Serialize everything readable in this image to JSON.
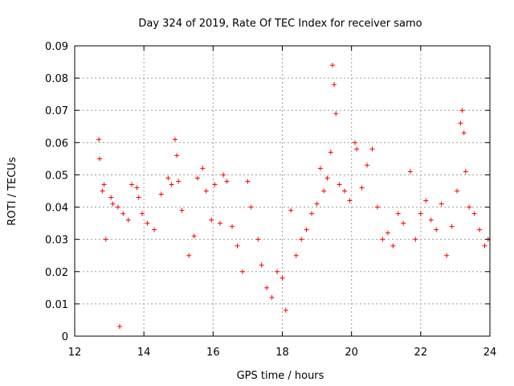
{
  "chart_data": {
    "type": "scatter",
    "title": "Day 324 of 2019, Rate Of TEC Index for receiver samo",
    "xlabel": "GPS time / hours",
    "ylabel": "ROTI / TECUs",
    "xlim": [
      12,
      24
    ],
    "ylim": [
      0,
      0.09
    ],
    "xticks": [
      "12",
      "14",
      "16",
      "18",
      "20",
      "22",
      "24"
    ],
    "yticks": [
      "0",
      "0.01",
      "0.02",
      "0.03",
      "0.04",
      "0.05",
      "0.06",
      "0.07",
      "0.08",
      "0.09"
    ],
    "grid": true,
    "marker": "+",
    "color": "#ff0000",
    "series": [
      {
        "name": "ROTI",
        "x": [
          12.7,
          12.72,
          12.8,
          12.85,
          12.9,
          13.05,
          13.1,
          13.25,
          13.3,
          13.4,
          13.55,
          13.65,
          13.8,
          13.85,
          13.95,
          14.1,
          14.3,
          14.5,
          14.7,
          14.8,
          14.9,
          14.95,
          15.0,
          15.1,
          15.3,
          15.45,
          15.55,
          15.7,
          15.8,
          15.95,
          16.05,
          16.2,
          16.3,
          16.4,
          16.55,
          16.7,
          16.85,
          17.0,
          17.1,
          17.3,
          17.4,
          17.55,
          17.7,
          17.85,
          18.0,
          18.1,
          18.25,
          18.4,
          18.55,
          18.7,
          18.85,
          19.0,
          19.1,
          19.2,
          19.3,
          19.4,
          19.45,
          19.5,
          19.55,
          19.65,
          19.8,
          19.95,
          20.1,
          20.15,
          20.3,
          20.45,
          20.6,
          20.75,
          20.9,
          21.05,
          21.2,
          21.35,
          21.5,
          21.7,
          21.85,
          22.0,
          22.15,
          22.3,
          22.45,
          22.6,
          22.75,
          22.9,
          23.05,
          23.15,
          23.2,
          23.25,
          23.3,
          23.4,
          23.55,
          23.7,
          23.85,
          23.95
        ],
        "y": [
          0.061,
          0.055,
          0.045,
          0.047,
          0.03,
          0.043,
          0.041,
          0.04,
          0.003,
          0.038,
          0.036,
          0.047,
          0.046,
          0.043,
          0.038,
          0.035,
          0.033,
          0.044,
          0.049,
          0.047,
          0.061,
          0.056,
          0.048,
          0.039,
          0.025,
          0.031,
          0.049,
          0.052,
          0.045,
          0.036,
          0.047,
          0.035,
          0.05,
          0.048,
          0.034,
          0.028,
          0.02,
          0.048,
          0.04,
          0.03,
          0.022,
          0.015,
          0.012,
          0.02,
          0.018,
          0.008,
          0.039,
          0.025,
          0.03,
          0.033,
          0.038,
          0.041,
          0.052,
          0.045,
          0.049,
          0.057,
          0.084,
          0.078,
          0.069,
          0.047,
          0.045,
          0.042,
          0.06,
          0.058,
          0.046,
          0.053,
          0.058,
          0.04,
          0.03,
          0.032,
          0.028,
          0.038,
          0.035,
          0.051,
          0.03,
          0.038,
          0.042,
          0.036,
          0.033,
          0.041,
          0.025,
          0.034,
          0.045,
          0.066,
          0.07,
          0.063,
          0.051,
          0.04,
          0.038,
          0.033,
          0.028,
          0.03
        ]
      }
    ]
  }
}
